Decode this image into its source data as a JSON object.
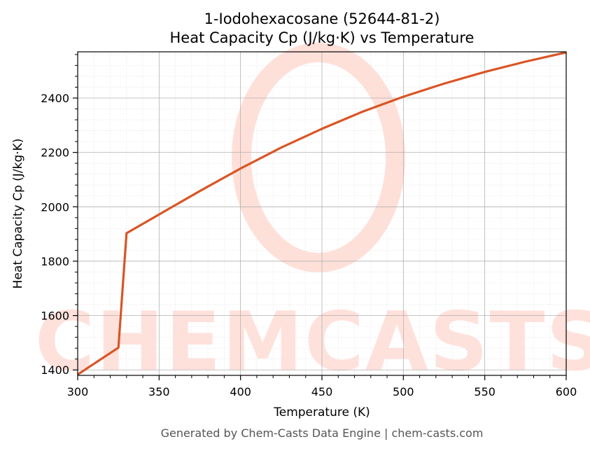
{
  "chart_data": {
    "type": "line",
    "title": "1-Iodohexacosane (52644-81-2)",
    "subtitle": "Heat Capacity Cp (J/kg·K) vs Temperature",
    "xlabel": "Temperature (K)",
    "ylabel": "Heat Capacity Cp (J/kg·K)",
    "xlim": [
      300,
      600
    ],
    "ylim": [
      1380,
      2570
    ],
    "xticks": [
      300,
      350,
      400,
      450,
      500,
      550,
      600
    ],
    "yticks": [
      1400,
      1600,
      1800,
      2000,
      2200,
      2400
    ],
    "grid": true,
    "line_color": "#d95525",
    "series": [
      {
        "x": [
          300,
          325,
          330,
          350,
          375,
          400,
          425,
          450,
          475,
          500,
          525,
          550,
          575,
          600
        ],
        "values": [
          1383,
          1482,
          1903,
          1972,
          2058,
          2141,
          2218,
          2287,
          2350,
          2405,
          2453,
          2496,
          2534,
          2568
        ]
      }
    ]
  },
  "watermark": {
    "text": "CHEMCASTS",
    "color": "#ffd8d0"
  },
  "footer": "Generated by Chem-Casts Data Engine | chem-casts.com"
}
